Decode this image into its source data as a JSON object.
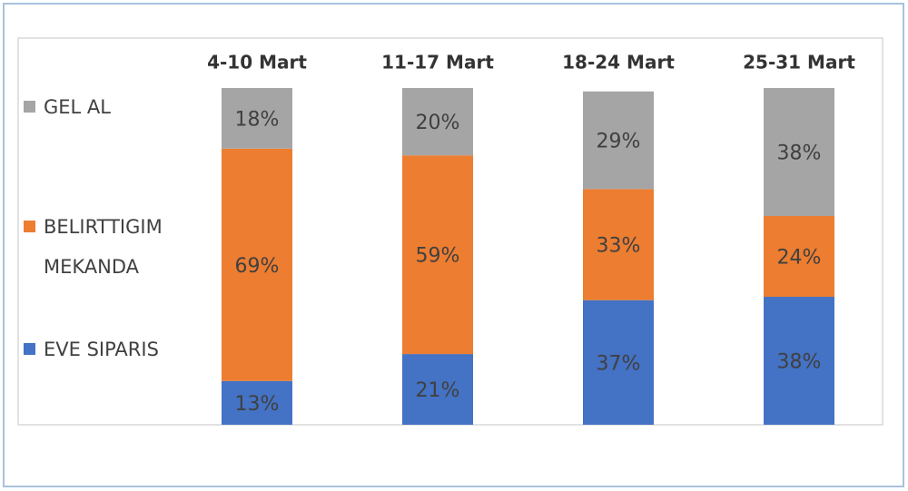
{
  "chart_data": {
    "type": "stacked-bar",
    "categories": [
      "4-10 Mart",
      "11-17 Mart",
      "18-24 Mart",
      "25-31 Mart"
    ],
    "series": [
      {
        "name": "EVE SIPARIS",
        "color": "#4472c4",
        "values": [
          13,
          21,
          37,
          38
        ],
        "value_labels": [
          "13%",
          "21%",
          "37%",
          "38%"
        ]
      },
      {
        "name": "BELIRTTIGIM MEKANDA",
        "color": "#ed7d31",
        "values": [
          69,
          59,
          33,
          24
        ],
        "value_labels": [
          "69%",
          "59%",
          "33%",
          "24%"
        ]
      },
      {
        "name": "GEL AL",
        "color": "#a5a5a5",
        "values": [
          18,
          20,
          29,
          38
        ],
        "value_labels": [
          "18%",
          "20%",
          "29%",
          "38%"
        ]
      }
    ],
    "ylim": [
      0,
      100
    ]
  }
}
